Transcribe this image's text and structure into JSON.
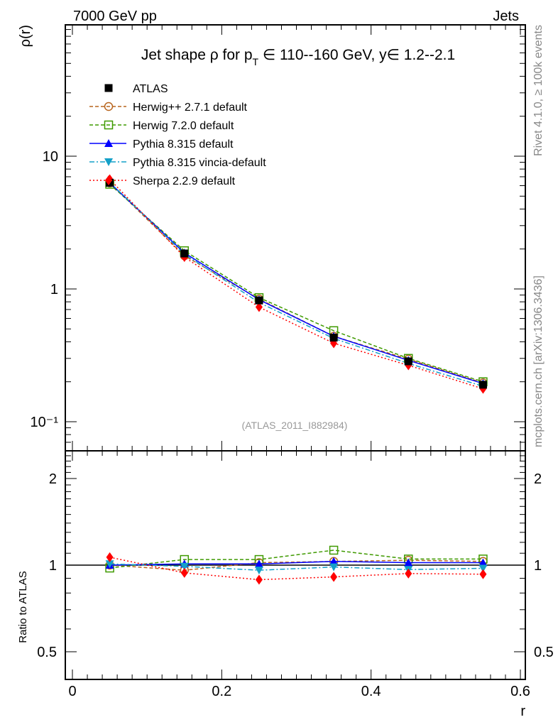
{
  "header": {
    "left": "7000 GeV pp",
    "right": "Jets",
    "side_top": "Rivet 4.1.0, ≥ 100k events",
    "side_bottom": "mcplots.cern.ch [arXiv:1306.3436]",
    "watermark": "(ATLAS_2011_I882984)"
  },
  "chart_data": {
    "type": "line",
    "title": "Jet shape ρ for p_T ∈ 110--160 GeV, y∈ 1.2--2.1",
    "title_parts": {
      "pre": "Jet shape ρ for p",
      "sub": "T",
      "post": " ∈ 110--160 GeV, y∈ 1.2--2.1"
    },
    "xlabel": "r",
    "ylabel": "ρ(r)",
    "ratio_ylabel": "Ratio to ATLAS",
    "xlim": [
      -0.0095,
      0.607
    ],
    "ylim": [
      0.0605,
      97.6
    ],
    "yscale": "log",
    "ratio_ylim": [
      0.342,
      2.5
    ],
    "ratio_yscale": "log",
    "x_ticks": [
      {
        "v": 0,
        "label": "0"
      },
      {
        "v": 0.2,
        "label": "0.2"
      },
      {
        "v": 0.4,
        "label": "0.4"
      },
      {
        "v": 0.6,
        "label": "0.6"
      }
    ],
    "y_ticks": [
      {
        "v": 10,
        "label": "10"
      },
      {
        "v": 1,
        "label": "1"
      },
      {
        "v": 0.1,
        "label": "10⁻¹"
      }
    ],
    "ratio_ticks": [
      {
        "v": 2,
        "label": "2"
      },
      {
        "v": 1,
        "label": "1"
      },
      {
        "v": 0.5,
        "label": "0.5"
      }
    ],
    "legend_position": "top-left",
    "x": [
      0.05,
      0.15,
      0.25,
      0.35,
      0.45,
      0.55
    ],
    "series": [
      {
        "name": "ATLAS",
        "color": "#000000",
        "marker": "square-filled",
        "dash": "none",
        "values": [
          6.3,
          1.85,
          0.82,
          0.43,
          0.285,
          0.19
        ],
        "ratio": [
          1,
          1,
          1,
          1,
          1,
          1
        ]
      },
      {
        "name": "Herwig++ 2.7.1 default",
        "color": "#b8651e",
        "marker": "circle-open",
        "dash": "5,3",
        "values": [
          6.3,
          1.78,
          0.84,
          0.44,
          0.296,
          0.196
        ],
        "ratio": [
          1.0,
          0.96,
          1.02,
          1.03,
          1.04,
          1.03
        ]
      },
      {
        "name": "Herwig 7.2.0 default",
        "color": "#3f9a00",
        "marker": "square-open",
        "dash": "5,3",
        "values": [
          6.15,
          1.94,
          0.86,
          0.485,
          0.3,
          0.2
        ],
        "ratio": [
          0.977,
          1.046,
          1.046,
          1.127,
          1.05,
          1.05
        ]
      },
      {
        "name": "Pythia 8.315 default",
        "color": "#0000ff",
        "marker": "triangle-up",
        "dash": "",
        "values": [
          6.3,
          1.87,
          0.83,
          0.44,
          0.29,
          0.194
        ],
        "ratio": [
          1.0,
          1.01,
          1.01,
          1.03,
          1.02,
          1.02
        ]
      },
      {
        "name": "Pythia 8.315 vincia-default",
        "color": "#14a0c8",
        "marker": "triangle-down",
        "dash": "7,3,2,3",
        "values": [
          6.36,
          1.83,
          0.79,
          0.424,
          0.275,
          0.185
        ],
        "ratio": [
          1.01,
          0.99,
          0.96,
          0.985,
          0.965,
          0.975
        ]
      },
      {
        "name": "Sherpa 2.2.9 default",
        "color": "#ff0000",
        "marker": "diamond",
        "dash": "2,3",
        "values": [
          6.7,
          1.74,
          0.73,
          0.39,
          0.266,
          0.177
        ],
        "ratio": [
          1.065,
          0.94,
          0.89,
          0.91,
          0.935,
          0.93
        ]
      }
    ]
  }
}
